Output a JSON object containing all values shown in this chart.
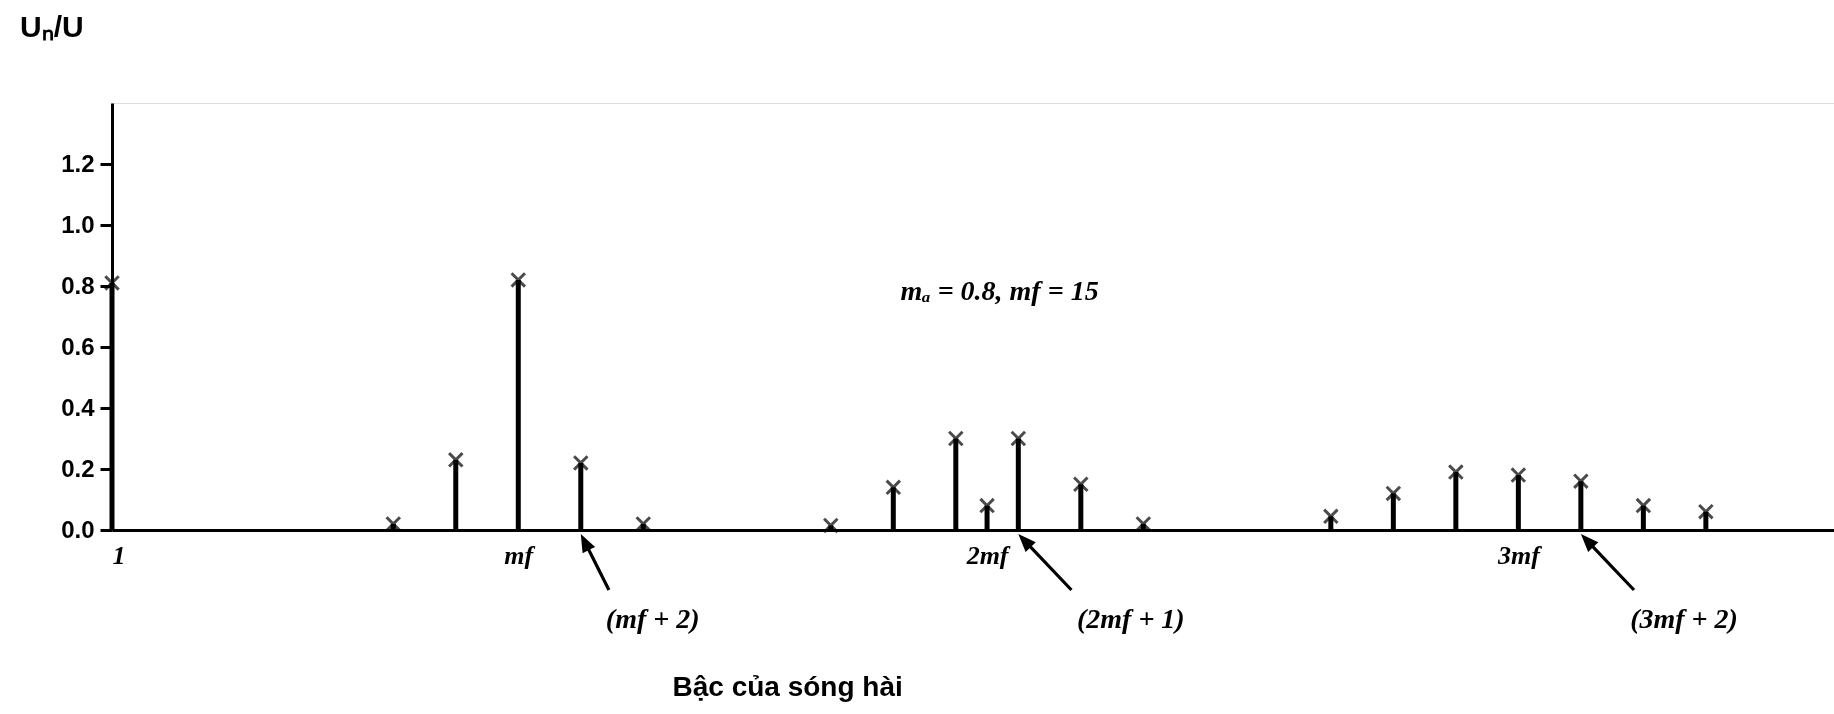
{
  "chart_data": {
    "type": "lollipop",
    "ylabel": "Uₙ/U",
    "xlabel": "Bậc của sóng hài",
    "color": "#000000",
    "marker": "cross",
    "categories": [
      "1",
      null,
      null,
      null,
      null,
      null,
      null,
      null,
      null,
      null,
      null,
      null,
      null,
      "mf",
      null,
      null,
      null,
      null,
      null,
      null,
      null,
      null,
      null,
      null,
      null,
      null,
      null,
      null,
      "2mf",
      null,
      null,
      null,
      null,
      null,
      null,
      null,
      null,
      null,
      null,
      null,
      null,
      null,
      null,
      null,
      null,
      "3mf",
      null,
      null,
      null,
      null,
      null,
      null
    ],
    "values": [
      0.81,
      null,
      null,
      null,
      null,
      null,
      null,
      null,
      null,
      0.02,
      null,
      0.23,
      null,
      0.82,
      null,
      0.22,
      null,
      0.02,
      null,
      null,
      null,
      null,
      null,
      0.015,
      null,
      0.14,
      null,
      0.3,
      0.08,
      0.3,
      null,
      0.15,
      null,
      0.02,
      null,
      null,
      null,
      null,
      null,
      0.045,
      null,
      0.12,
      null,
      0.19,
      null,
      0.18,
      null,
      0.16,
      null,
      0.08,
      null,
      0.06
    ],
    "ylim": [
      0,
      1.4
    ],
    "yticks": [
      {
        "value": 0,
        "label": "0.0"
      },
      {
        "value": 0.2,
        "label": "0.2"
      },
      {
        "value": 0.4,
        "label": "0.4"
      },
      {
        "value": 0.6,
        "label": "0.6"
      },
      {
        "value": 0.8,
        "label": "0.8"
      },
      {
        "value": 1.0,
        "label": "1.0"
      },
      {
        "value": 1.2,
        "label": "1.2"
      }
    ],
    "annotations": [
      "mₐ = 0.8, mf = 15",
      "(mf + 2)",
      "(2mf + 1)",
      "(3mf + 2)"
    ]
  }
}
